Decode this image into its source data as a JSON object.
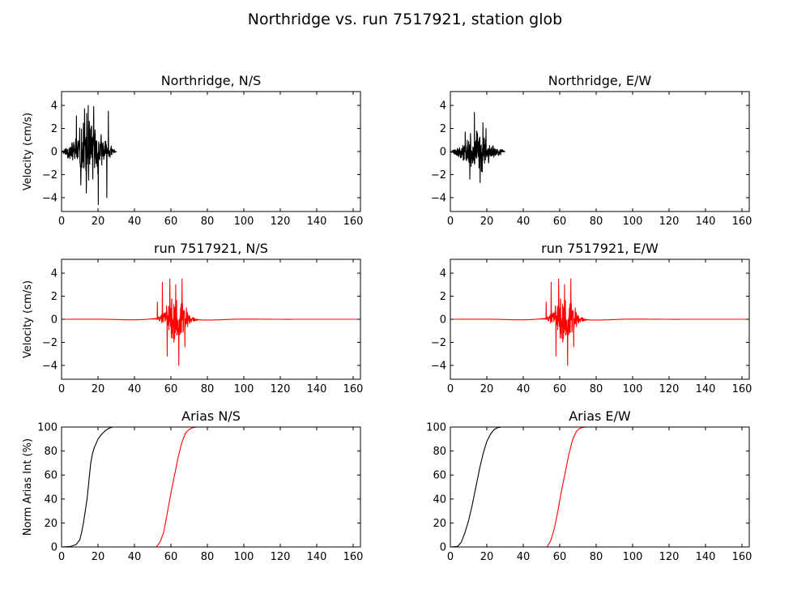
{
  "figure": {
    "title": "Northridge vs. run 7517921, station glob"
  },
  "colors": {
    "recorded": "#000000",
    "simulated": "#ff0000",
    "axes": "#000000",
    "background": "#ffffff"
  },
  "chart_data": [
    {
      "type": "line",
      "title": "Northridge, N/S",
      "xlabel": "",
      "ylabel": "Velocity (cm/s)",
      "xlim": [
        0,
        164
      ],
      "ylim": [
        -5.2,
        5.2
      ],
      "xticks": [
        0,
        20,
        40,
        60,
        80,
        100,
        120,
        140,
        160
      ],
      "yticks": [
        -4,
        -2,
        0,
        2,
        4
      ],
      "grid": false,
      "series": [
        {
          "signal": "burst",
          "color": "#000000",
          "start": 0,
          "end": 30,
          "peak_center": 15,
          "spread": 7,
          "amplitude": 4.6,
          "seed": 11,
          "peaks": [
            [
              20.2,
              -4.6
            ],
            [
              14.6,
              4.0
            ],
            [
              17.6,
              3.9
            ],
            [
              24.8,
              -4.0
            ],
            [
              25.7,
              3.5
            ],
            [
              12.6,
              3.7
            ],
            [
              13.5,
              -3.6
            ],
            [
              8.2,
              3.1
            ],
            [
              10.6,
              -2.9
            ]
          ]
        }
      ]
    },
    {
      "type": "line",
      "title": "Northridge, E/W",
      "xlabel": "",
      "ylabel": "",
      "xlim": [
        0,
        164
      ],
      "ylim": [
        -5.2,
        5.2
      ],
      "xticks": [
        0,
        20,
        40,
        60,
        80,
        100,
        120,
        140,
        160
      ],
      "yticks": [
        -4,
        -2,
        0,
        2,
        4
      ],
      "grid": false,
      "series": [
        {
          "signal": "burst",
          "color": "#000000",
          "start": 0,
          "end": 30,
          "peak_center": 15,
          "spread": 7,
          "amplitude": 2.8,
          "seed": 23,
          "peaks": [
            [
              13.2,
              3.4
            ],
            [
              16.3,
              -2.7
            ],
            [
              17.9,
              2.5
            ],
            [
              10.7,
              -2.4
            ],
            [
              19.6,
              2.0
            ],
            [
              8.2,
              1.7
            ]
          ]
        }
      ]
    },
    {
      "type": "line",
      "title": "run 7517921, N/S",
      "xlabel": "",
      "ylabel": "Velocity (cm/s)",
      "xlim": [
        0,
        164
      ],
      "ylim": [
        -5.2,
        5.2
      ],
      "xticks": [
        0,
        20,
        40,
        60,
        80,
        100,
        120,
        140,
        160
      ],
      "yticks": [
        -4,
        -2,
        0,
        2,
        4
      ],
      "grid": false,
      "series": [
        {
          "signal": "burst",
          "color": "#ff0000",
          "start": 0,
          "end": 164,
          "peak_center": 63,
          "spread": 6,
          "amplitude": 3.5,
          "seed": 37,
          "low_freq": 0.1,
          "peaks": [
            [
              64.3,
              -4.0
            ],
            [
              59.4,
              3.5
            ],
            [
              66.1,
              3.5
            ],
            [
              62.6,
              3.0
            ],
            [
              55.3,
              3.2
            ],
            [
              57.9,
              -3.2
            ],
            [
              67.7,
              -2.4
            ],
            [
              52.6,
              1.5
            ]
          ]
        }
      ]
    },
    {
      "type": "line",
      "title": "run 7517921, E/W",
      "xlabel": "",
      "ylabel": "",
      "xlim": [
        0,
        164
      ],
      "ylim": [
        -5.2,
        5.2
      ],
      "xticks": [
        0,
        20,
        40,
        60,
        80,
        100,
        120,
        140,
        160
      ],
      "yticks": [
        -4,
        -2,
        0,
        2,
        4
      ],
      "grid": false,
      "series": [
        {
          "signal": "burst",
          "color": "#ff0000",
          "start": 0,
          "end": 164,
          "peak_center": 63,
          "spread": 6,
          "amplitude": 3.5,
          "seed": 37,
          "low_freq": 0.1,
          "peaks": [
            [
              64.3,
              -4.0
            ],
            [
              59.4,
              3.5
            ],
            [
              66.1,
              3.5
            ],
            [
              62.6,
              3.0
            ],
            [
              55.3,
              3.2
            ],
            [
              57.9,
              -3.2
            ],
            [
              67.7,
              -2.4
            ],
            [
              52.6,
              1.5
            ]
          ]
        }
      ]
    },
    {
      "type": "line",
      "title": "Arias N/S",
      "xlabel": "",
      "ylabel": "Norm Arias Int (%)",
      "xlim": [
        0,
        164
      ],
      "ylim": [
        0,
        100
      ],
      "xticks": [
        0,
        20,
        40,
        60,
        80,
        100,
        120,
        140,
        160
      ],
      "yticks": [
        0,
        20,
        40,
        60,
        80,
        100
      ],
      "grid": false,
      "series": [
        {
          "color": "#000000",
          "x": [
            0,
            5,
            8,
            10,
            11,
            12,
            13,
            14,
            15,
            16,
            17,
            18,
            20,
            22,
            24,
            26,
            28
          ],
          "y": [
            0,
            0.5,
            2,
            6,
            12,
            20,
            30,
            40,
            55,
            70,
            78,
            83,
            90,
            94,
            97,
            99,
            100
          ]
        },
        {
          "color": "#ff0000",
          "x": [
            0,
            52,
            54,
            56,
            58,
            60,
            62,
            64,
            66,
            68,
            70,
            72,
            74
          ],
          "y": [
            0,
            0,
            4,
            12,
            28,
            45,
            60,
            75,
            87,
            95,
            98,
            99.5,
            100
          ]
        }
      ]
    },
    {
      "type": "line",
      "title": "Arias E/W",
      "xlabel": "",
      "ylabel": "",
      "xlim": [
        0,
        164
      ],
      "ylim": [
        0,
        100
      ],
      "xticks": [
        0,
        20,
        40,
        60,
        80,
        100,
        120,
        140,
        160
      ],
      "yticks": [
        0,
        20,
        40,
        60,
        80,
        100
      ],
      "grid": false,
      "series": [
        {
          "color": "#000000",
          "x": [
            0,
            4,
            6,
            8,
            10,
            12,
            14,
            16,
            18,
            20,
            22,
            24,
            26,
            28
          ],
          "y": [
            0,
            0.5,
            4,
            12,
            22,
            35,
            50,
            65,
            78,
            88,
            94,
            98,
            99.5,
            100
          ]
        },
        {
          "color": "#ff0000",
          "x": [
            0,
            53,
            55,
            57,
            59,
            61,
            63,
            65,
            67,
            69,
            71,
            73,
            75
          ],
          "y": [
            0,
            0,
            5,
            15,
            30,
            47,
            62,
            77,
            89,
            96,
            99,
            99.8,
            100
          ]
        }
      ]
    }
  ]
}
